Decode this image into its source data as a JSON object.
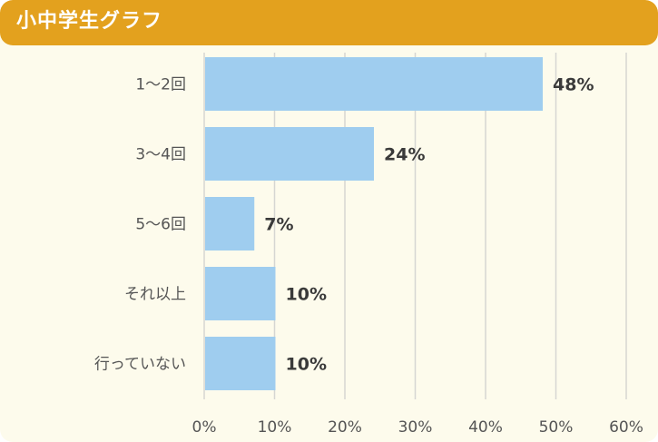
{
  "header": {
    "title": "小中学生グラフ"
  },
  "colors": {
    "header_bg": "#e3a11e",
    "panel_bg": "#fdfbec",
    "bar": "#9fcdef",
    "grid": "#d6d6d2"
  },
  "chart_data": {
    "type": "bar",
    "orientation": "horizontal",
    "title": "小中学生グラフ",
    "categories": [
      "1～2回",
      "3～4回",
      "5～6回",
      "それ以上",
      "行っていない"
    ],
    "values": [
      48,
      24,
      7,
      10,
      10
    ],
    "value_labels": [
      "48%",
      "24%",
      "7%",
      "10%",
      "10%"
    ],
    "xlim": [
      0,
      60
    ],
    "xticks": [
      0,
      10,
      20,
      30,
      40,
      50,
      60
    ],
    "xtick_labels": [
      "0%",
      "10%",
      "20%",
      "30%",
      "40%",
      "50%",
      "60%"
    ],
    "grid": true,
    "legend": "none"
  }
}
